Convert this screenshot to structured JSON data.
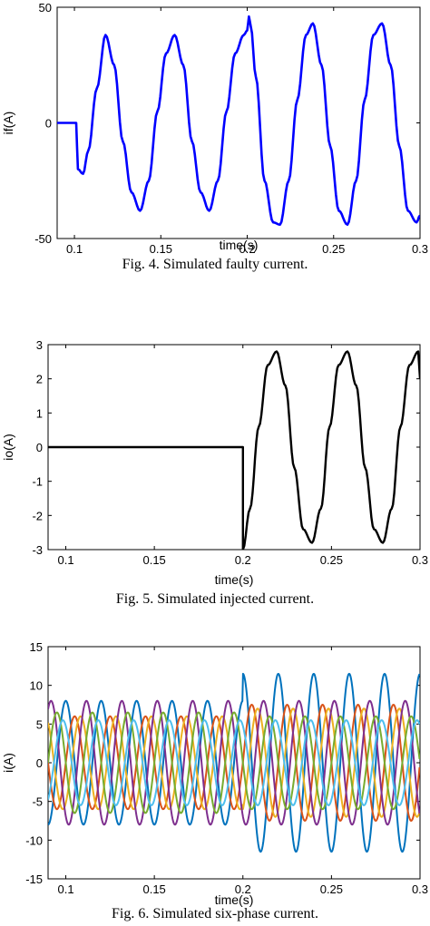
{
  "figures": [
    {
      "caption": "Fig. 4.    Simulated faulty current."
    },
    {
      "caption": "Fig. 5.    Simulated injected current."
    },
    {
      "caption": "Fig. 6.    Simulated six-phase current."
    }
  ],
  "chart_data": [
    {
      "type": "line",
      "xlabel": "time(s)",
      "ylabel": "if(A)",
      "xlim": [
        0.09,
        0.3
      ],
      "ylim": [
        -50,
        50
      ],
      "xticks": [
        "0.1",
        "0.15",
        "0.2",
        "0.25",
        "0.3"
      ],
      "yticks": [
        "-50",
        "0",
        "50"
      ],
      "grid": false,
      "series": [
        {
          "color": "#0000ff",
          "x": [
            0.09,
            0.1,
            0.101,
            0.102,
            0.105,
            0.108,
            0.113,
            0.118,
            0.123,
            0.128,
            0.133,
            0.138,
            0.143,
            0.148,
            0.153,
            0.158,
            0.163,
            0.168,
            0.173,
            0.178,
            0.183,
            0.188,
            0.193,
            0.198,
            0.2,
            0.201,
            0.202,
            0.205,
            0.21,
            0.215,
            0.219,
            0.224,
            0.229,
            0.234,
            0.238,
            0.243,
            0.248,
            0.253,
            0.258,
            0.263,
            0.268,
            0.273,
            0.278,
            0.283,
            0.288,
            0.293,
            0.298,
            0.3
          ],
          "y": [
            0,
            0,
            0,
            -20,
            -22,
            -12,
            15,
            38,
            25,
            -8,
            -30,
            -38,
            -25,
            5,
            30,
            38,
            25,
            -8,
            -30,
            -38,
            -25,
            5,
            30,
            38,
            40,
            46,
            42,
            20,
            -25,
            -43,
            -44,
            -25,
            10,
            38,
            43,
            25,
            -10,
            -38,
            -44,
            -25,
            10,
            38,
            43,
            25,
            -10,
            -38,
            -43,
            -40
          ]
        }
      ]
    },
    {
      "type": "line",
      "xlabel": "time(s)",
      "ylabel": "io(A)",
      "xlim": [
        0.09,
        0.3
      ],
      "ylim": [
        -3,
        3
      ],
      "xticks": [
        "0.1",
        "0.15",
        "0.2",
        "0.25",
        "0.3"
      ],
      "yticks": [
        "-3",
        "-2",
        "-1",
        "0",
        "1",
        "2",
        "3"
      ],
      "grid": false,
      "series": [
        {
          "color": "#000000",
          "x": [
            0.09,
            0.2,
            0.2,
            0.204,
            0.209,
            0.214,
            0.219,
            0.224,
            0.229,
            0.234,
            0.239,
            0.244,
            0.249,
            0.254,
            0.259,
            0.264,
            0.269,
            0.274,
            0.279,
            0.284,
            0.289,
            0.294,
            0.299,
            0.3
          ],
          "y": [
            0,
            0,
            -3,
            -1.8,
            0.6,
            2.4,
            2.8,
            1.8,
            -0.6,
            -2.4,
            -2.8,
            -1.8,
            0.6,
            2.4,
            2.8,
            1.8,
            -0.6,
            -2.4,
            -2.8,
            -1.8,
            0.6,
            2.4,
            2.8,
            2.0
          ]
        }
      ]
    },
    {
      "type": "line",
      "xlabel": "time(s)",
      "ylabel": "i(A)",
      "xlim": [
        0.09,
        0.3
      ],
      "ylim": [
        -15,
        15
      ],
      "xticks": [
        "0.1",
        "0.15",
        "0.2",
        "0.25",
        "0.3"
      ],
      "yticks": [
        "-15",
        "-10",
        "-5",
        "0",
        "5",
        "10",
        "15"
      ],
      "grid": false,
      "series": [
        {
          "color": "#0072bd",
          "amp_before": 8,
          "amp_after": 11.5,
          "phase_deg": 90
        },
        {
          "color": "#d95319",
          "amp_before": 6,
          "amp_after": 7.5,
          "phase_deg": 0
        },
        {
          "color": "#edb120",
          "amp_before": 6,
          "amp_after": 7,
          "phase_deg": 300
        },
        {
          "color": "#7e2f8e",
          "amp_before": 8,
          "amp_after": 8,
          "phase_deg": 240
        },
        {
          "color": "#77ac30",
          "amp_before": 6.5,
          "amp_after": 6,
          "phase_deg": 180
        },
        {
          "color": "#4dbeee",
          "amp_before": 5.5,
          "amp_after": 5.5,
          "phase_deg": 120
        }
      ]
    }
  ]
}
